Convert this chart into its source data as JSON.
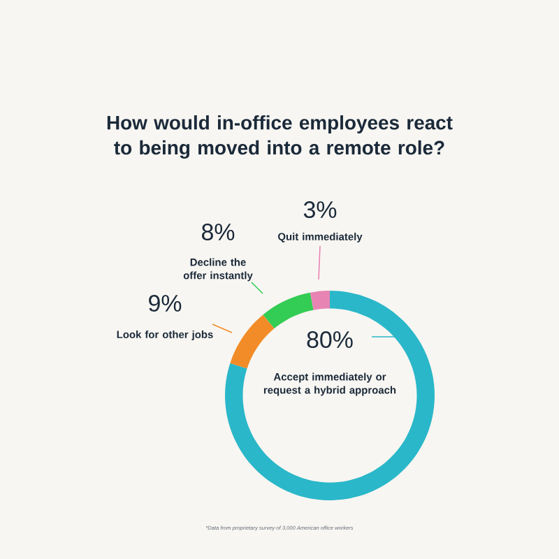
{
  "chart_data": {
    "type": "donut",
    "title": "How would in-office employees react to being moved into a remote role?",
    "categories": [
      "Accept immediately or request a hybrid approach",
      "Look for other jobs",
      "Decline the offer instantly",
      "Quit immediately"
    ],
    "values": [
      80,
      9,
      8,
      3
    ],
    "value_labels": [
      "80%",
      "9%",
      "8%",
      "3%"
    ],
    "colors": [
      "#2ab7c9",
      "#f28c28",
      "#33cc55",
      "#e884b4"
    ],
    "annotations": [
      "*Data from proprietary survey of 3,000 American office workers"
    ]
  }
}
